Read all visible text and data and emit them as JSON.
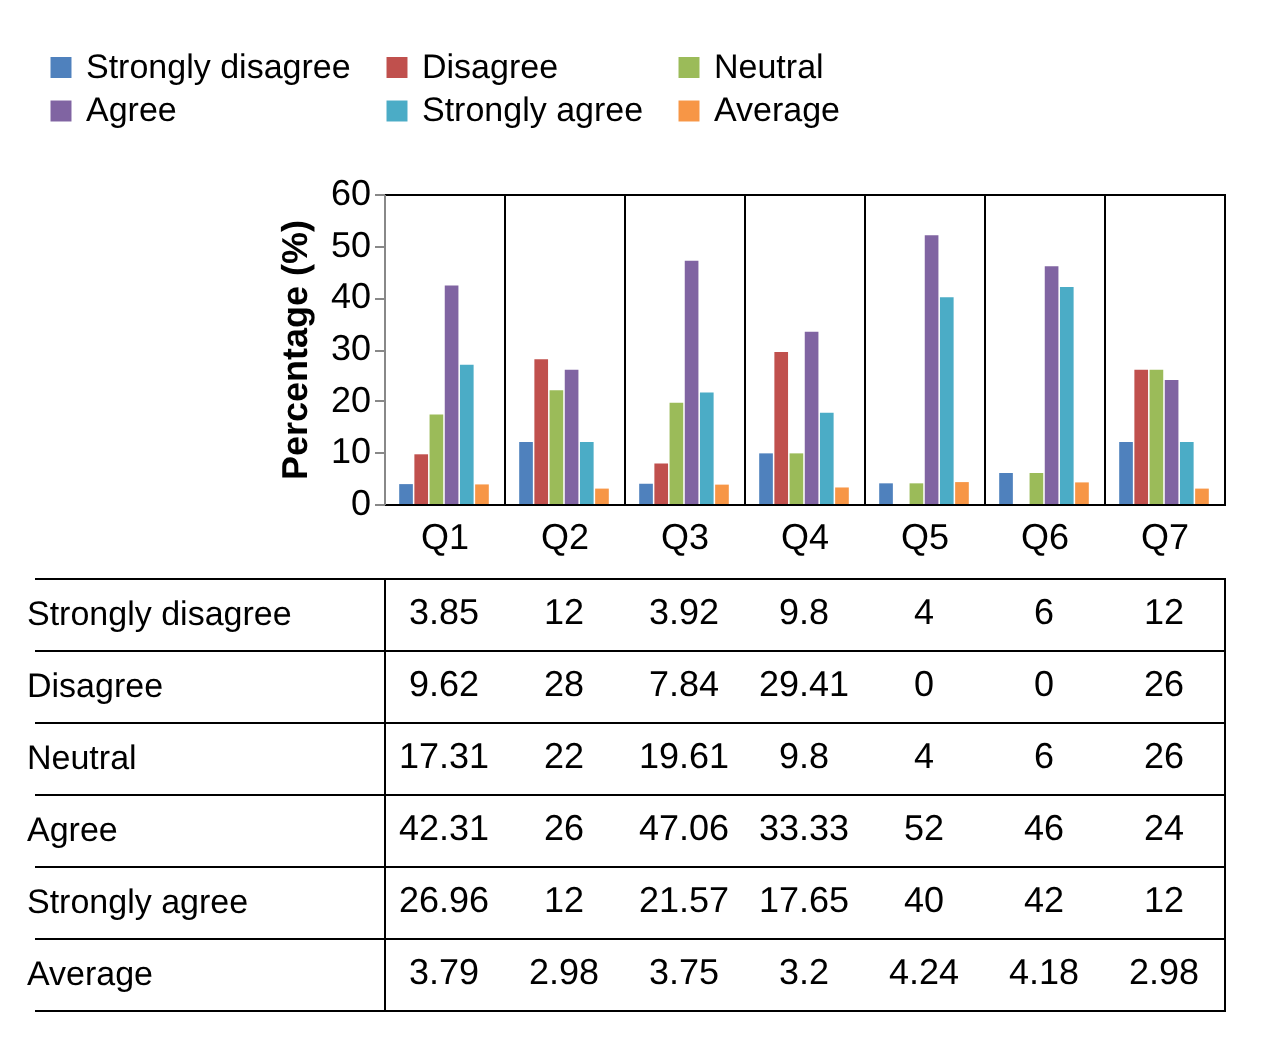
{
  "chart_data": {
    "type": "bar",
    "ylabel": "Percentage (%)",
    "categories": [
      "Q1",
      "Q2",
      "Q3",
      "Q4",
      "Q5",
      "Q6",
      "Q7"
    ],
    "series": [
      {
        "name": "Strongly disagree",
        "color": "#4f81bd",
        "values": [
          3.85,
          12,
          3.92,
          9.8,
          4,
          6,
          12
        ]
      },
      {
        "name": "Disagree",
        "color": "#c0504d",
        "values": [
          9.62,
          28,
          7.84,
          29.41,
          0,
          0,
          26
        ]
      },
      {
        "name": "Neutral",
        "color": "#9bbb59",
        "values": [
          17.31,
          22,
          19.61,
          9.8,
          4,
          6,
          26
        ]
      },
      {
        "name": "Agree",
        "color": "#8064a2",
        "values": [
          42.31,
          26,
          47.06,
          33.33,
          52,
          46,
          24
        ]
      },
      {
        "name": "Strongly agree",
        "color": "#4bacc6",
        "values": [
          26.96,
          12,
          21.57,
          17.65,
          40,
          42,
          12
        ]
      },
      {
        "name": "Average",
        "color": "#f79646",
        "values": [
          3.79,
          2.98,
          3.75,
          3.2,
          4.24,
          4.18,
          2.98
        ]
      }
    ],
    "ylim": [
      0,
      60
    ],
    "yticks": [
      0,
      10,
      20,
      30,
      40,
      50,
      60
    ],
    "grid": false,
    "legend": "top",
    "data_labels": true
  }
}
